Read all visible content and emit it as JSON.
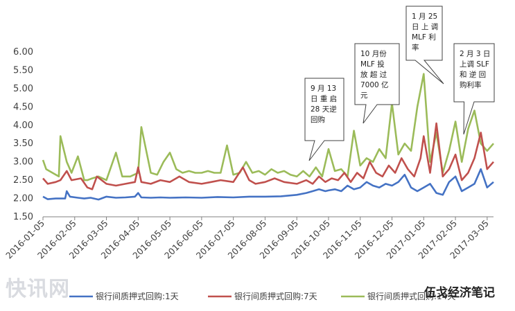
{
  "chart_data": {
    "type": "line",
    "title": "",
    "xlabel": "",
    "ylabel": "",
    "ylim": [
      1.5,
      6.0
    ],
    "y_ticks": [
      "6.00",
      "5.50",
      "5.00",
      "4.50",
      "4.00",
      "3.50",
      "3.00",
      "2.50",
      "2.00",
      "1.50"
    ],
    "x_tick_labels": [
      "2016-01-05",
      "2016-02-05",
      "2016-03-05",
      "2016-04-05",
      "2016-05-05",
      "2016-06-05",
      "2016-07-05",
      "2016-08-05",
      "2016-09-05",
      "2016-10-05",
      "2016-11-05",
      "2016-12-05",
      "2017-01-05",
      "2017-02-05",
      "2017-03-05"
    ],
    "x_index_range": [
      0,
      14.2
    ],
    "legend_position": "bottom",
    "grid": false,
    "series": [
      {
        "name": "银行间质押式回购:1天",
        "color": "#4472C4",
        "x": [
          0,
          0.15,
          0.4,
          0.7,
          0.75,
          0.85,
          1.1,
          1.3,
          1.5,
          1.75,
          2.0,
          2.3,
          2.6,
          2.9,
          3.0,
          3.1,
          3.4,
          3.7,
          4.0,
          4.5,
          5.0,
          5.5,
          6.0,
          6.5,
          7.0,
          7.5,
          8.0,
          8.3,
          8.5,
          8.7,
          8.9,
          9.0,
          9.2,
          9.4,
          9.6,
          9.8,
          10.0,
          10.2,
          10.4,
          10.6,
          10.8,
          11.0,
          11.2,
          11.4,
          11.6,
          11.8,
          12.0,
          12.2,
          12.4,
          12.6,
          12.8,
          13.0,
          13.2,
          13.4,
          13.6,
          13.8,
          14.0,
          14.2
        ],
        "values": [
          2.05,
          1.98,
          2.0,
          2.0,
          2.2,
          2.05,
          2.02,
          2.0,
          2.02,
          1.97,
          2.05,
          2.02,
          2.03,
          2.05,
          2.15,
          2.03,
          2.02,
          2.03,
          2.02,
          2.03,
          2.02,
          2.04,
          2.03,
          2.05,
          2.05,
          2.06,
          2.1,
          2.15,
          2.2,
          2.25,
          2.2,
          2.22,
          2.25,
          2.2,
          2.35,
          2.25,
          2.3,
          2.45,
          2.35,
          2.3,
          2.4,
          2.35,
          2.45,
          2.65,
          2.3,
          2.2,
          2.3,
          2.4,
          2.15,
          2.1,
          2.45,
          2.6,
          2.2,
          2.3,
          2.4,
          2.8,
          2.3,
          2.45
        ]
      },
      {
        "name": "银行间质押式回购:7天",
        "color": "#C0504D",
        "x": [
          0,
          0.15,
          0.4,
          0.55,
          0.75,
          0.9,
          1.2,
          1.4,
          1.55,
          1.7,
          2.0,
          2.3,
          2.6,
          2.9,
          3.0,
          3.1,
          3.4,
          3.7,
          4.0,
          4.3,
          4.6,
          5.0,
          5.3,
          5.6,
          6.0,
          6.3,
          6.5,
          6.7,
          7.0,
          7.3,
          7.6,
          8.0,
          8.3,
          8.5,
          8.7,
          8.9,
          9.1,
          9.3,
          9.5,
          9.7,
          9.9,
          10.1,
          10.3,
          10.5,
          10.7,
          10.9,
          11.1,
          11.3,
          11.5,
          11.7,
          11.9,
          12.0,
          12.2,
          12.4,
          12.6,
          12.8,
          13.0,
          13.2,
          13.4,
          13.6,
          13.8,
          14.0,
          14.2
        ],
        "values": [
          2.55,
          2.4,
          2.45,
          2.5,
          2.75,
          2.5,
          2.55,
          2.3,
          2.25,
          2.6,
          2.4,
          2.35,
          2.4,
          2.45,
          2.85,
          2.45,
          2.4,
          2.5,
          2.45,
          2.6,
          2.45,
          2.4,
          2.45,
          2.5,
          2.45,
          2.85,
          2.5,
          2.4,
          2.45,
          2.55,
          2.45,
          2.4,
          2.5,
          2.4,
          2.6,
          2.45,
          2.55,
          2.5,
          2.7,
          2.45,
          2.7,
          2.55,
          3.0,
          2.7,
          2.6,
          2.9,
          2.7,
          3.1,
          2.8,
          2.6,
          3.1,
          3.7,
          2.7,
          4.05,
          2.6,
          2.8,
          3.2,
          2.5,
          2.7,
          3.1,
          3.8,
          2.8,
          3.0
        ]
      },
      {
        "name": "银行间质押式回购:14天",
        "color": "#9BBB59",
        "x": [
          0,
          0.1,
          0.3,
          0.5,
          0.55,
          0.75,
          0.9,
          1.1,
          1.3,
          1.4,
          1.55,
          1.75,
          2.0,
          2.3,
          2.5,
          2.75,
          3.0,
          3.1,
          3.4,
          3.6,
          3.8,
          4.0,
          4.2,
          4.4,
          4.6,
          4.8,
          5.0,
          5.2,
          5.4,
          5.6,
          5.8,
          6.0,
          6.2,
          6.4,
          6.6,
          6.8,
          7.0,
          7.2,
          7.4,
          7.6,
          7.8,
          8.0,
          8.2,
          8.4,
          8.6,
          8.8,
          9.0,
          9.2,
          9.4,
          9.6,
          9.8,
          10.0,
          10.2,
          10.4,
          10.6,
          10.8,
          11.0,
          11.2,
          11.4,
          11.6,
          11.8,
          12.0,
          12.2,
          12.4,
          12.6,
          12.8,
          13.0,
          13.2,
          13.4,
          13.6,
          13.8,
          14.0,
          14.2
        ],
        "values": [
          3.05,
          2.8,
          2.7,
          2.6,
          3.7,
          3.0,
          2.7,
          3.15,
          2.5,
          2.5,
          2.55,
          2.6,
          2.5,
          3.25,
          2.6,
          2.6,
          2.7,
          3.95,
          2.7,
          2.65,
          3.0,
          3.25,
          2.8,
          2.7,
          2.75,
          2.7,
          2.7,
          2.75,
          2.7,
          2.7,
          3.45,
          2.65,
          2.7,
          3.0,
          2.7,
          2.75,
          2.65,
          2.8,
          2.7,
          2.75,
          2.65,
          2.6,
          2.75,
          2.6,
          2.85,
          2.6,
          3.35,
          2.75,
          2.8,
          2.6,
          3.85,
          2.9,
          3.1,
          3.0,
          3.35,
          3.1,
          4.6,
          3.2,
          3.5,
          3.3,
          4.5,
          5.4,
          3.0,
          3.8,
          2.7,
          3.3,
          4.1,
          3.0,
          3.9,
          4.4,
          3.5,
          3.3,
          3.5
        ]
      }
    ],
    "annotations": [
      {
        "lines": [
          "9  月  13",
          "日 重 启",
          "28  天逆",
          "回购"
        ],
        "x": 8.7,
        "y": 3.0
      },
      {
        "lines": [
          "10  月份",
          "MLF  投",
          "放 超 过",
          "7000  亿",
          "元"
        ],
        "x": 9.9,
        "y": 3.6
      },
      {
        "lines": [
          "1  月  25",
          "日 上 调",
          "MLF  利",
          "率"
        ],
        "x": 12.5,
        "y": 4.0
      },
      {
        "lines": [
          "2 月 3 日",
          "上调 SLF",
          "和 逆 回",
          "购利率"
        ],
        "x": 13.3,
        "y": 3.55
      }
    ]
  },
  "watermark_left": "快讯网",
  "watermark_right": "伍戈经济笔记"
}
